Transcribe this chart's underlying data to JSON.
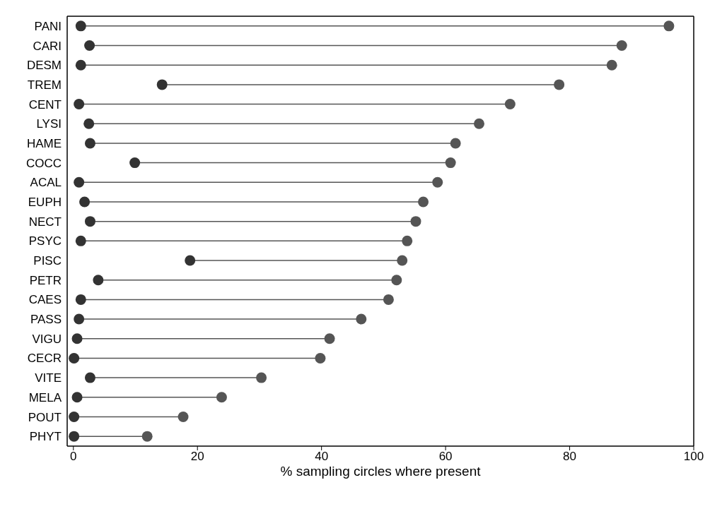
{
  "chart_data": {
    "type": "lollipop",
    "orientation": "horizontal",
    "xlabel": "% sampling circles where present",
    "categories": [
      "PANI",
      "CARI",
      "DESM",
      "TREM",
      "CENT",
      "LYSI",
      "HAME",
      "COCC",
      "ACAL",
      "EUPH",
      "NECT",
      "PSYC",
      "PISC",
      "PETR",
      "CAES",
      "PASS",
      "VIGU",
      "CECR",
      "VITE",
      "MELA",
      "POUT",
      "PHYT"
    ],
    "series": [
      {
        "color": "#333333",
        "values": [
          1.2,
          2.6,
          1.2,
          14.3,
          0.9,
          2.5,
          2.7,
          9.9,
          0.9,
          1.8,
          2.7,
          1.2,
          18.8,
          4.0,
          1.2,
          0.9,
          0.6,
          0.1,
          2.7,
          0.6,
          0.1,
          0.1
        ]
      },
      {
        "color": "#555555",
        "values": [
          96.0,
          88.4,
          86.8,
          78.3,
          70.4,
          65.4,
          61.6,
          60.8,
          58.7,
          56.4,
          55.2,
          53.8,
          53.0,
          52.1,
          50.8,
          46.4,
          41.3,
          39.8,
          30.3,
          23.9,
          17.7,
          11.9
        ]
      }
    ],
    "xlim": [
      -1,
      100
    ],
    "xticks": [
      0,
      20,
      40,
      60,
      80,
      100
    ],
    "marker": "circle"
  }
}
